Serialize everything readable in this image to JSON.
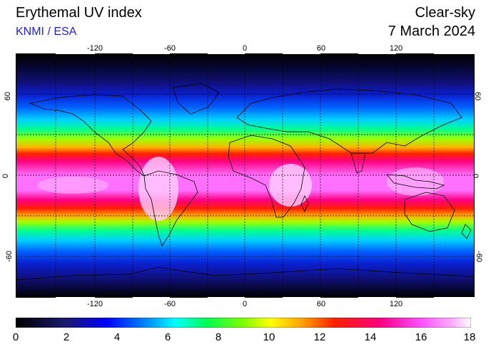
{
  "header": {
    "title": "Erythemal UV index",
    "subtitle": "KNMI / ESA",
    "condition": "Clear-sky",
    "date": "7 March 2024"
  },
  "map": {
    "lon_ticks": [
      "-120",
      "-60",
      "0",
      "60",
      "120"
    ],
    "lat_ticks": [
      "60",
      "0",
      "-60"
    ],
    "projection": "equirectangular",
    "grid": "dashed 30 degree graticule"
  },
  "colorbar": {
    "labels": [
      "0",
      "2",
      "4",
      "6",
      "8",
      "10",
      "12",
      "14",
      "16",
      "18"
    ],
    "min": 0,
    "max": 18,
    "colors": [
      "#000000",
      "#1a1a6e",
      "#0000ff",
      "#00a0ff",
      "#00ffff",
      "#00ff50",
      "#7fff00",
      "#ffff00",
      "#ffa000",
      "#ff2000",
      "#ff0080",
      "#ff50ff",
      "#ffb0ff",
      "#ffffff"
    ]
  }
}
